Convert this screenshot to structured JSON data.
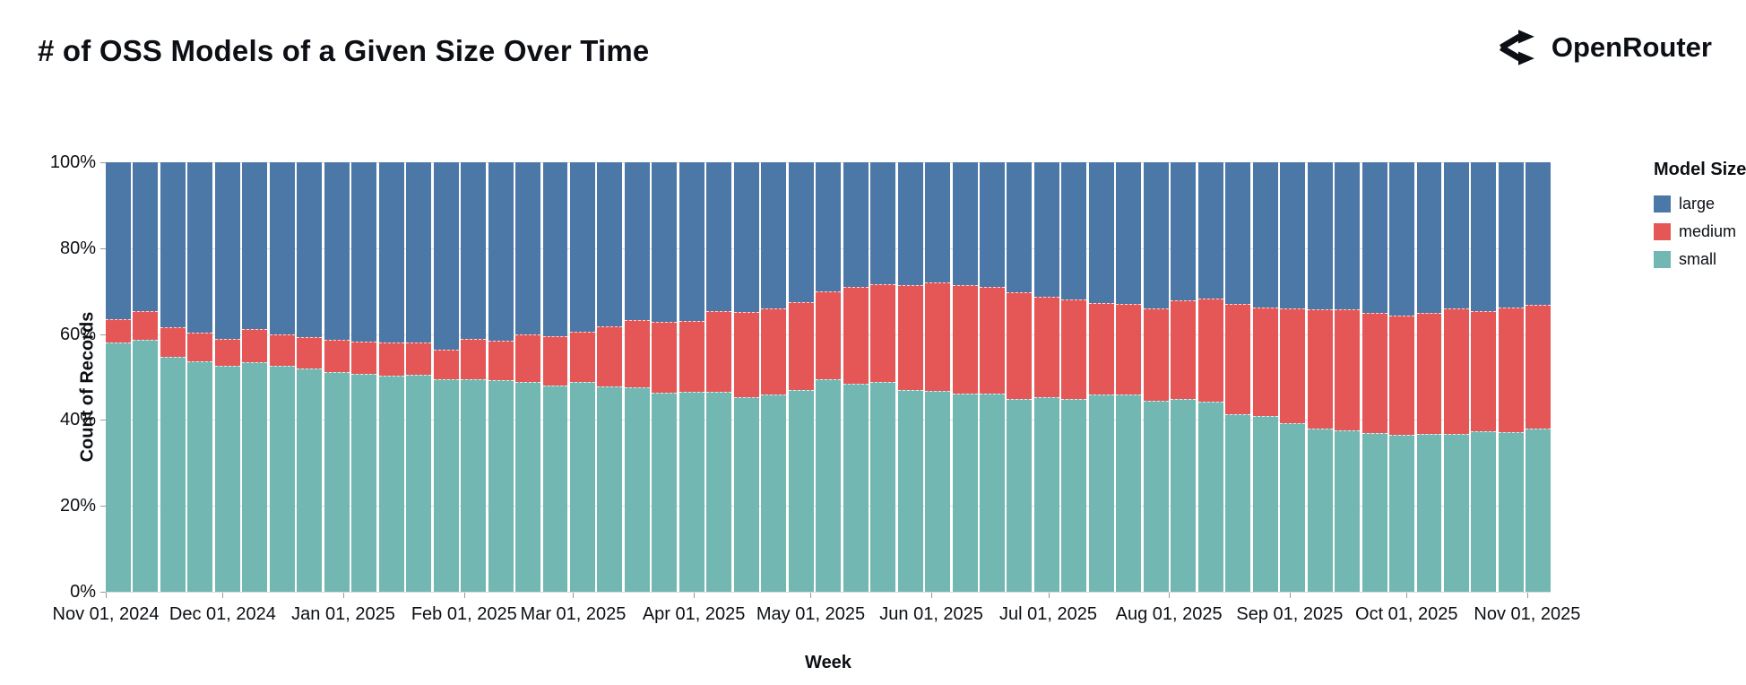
{
  "header": {
    "title": "# of OSS Models of a Given Size Over Time",
    "logo_text": "OpenRouter",
    "logo_icon": "openrouter-arrows-icon"
  },
  "legend": {
    "title": "Model Size",
    "items": [
      {
        "label": "large",
        "color": "#4c78a8"
      },
      {
        "label": "medium",
        "color": "#e45756"
      },
      {
        "label": "small",
        "color": "#72b7b2"
      }
    ]
  },
  "chart_data": {
    "type": "bar",
    "subtype": "stacked-100-percent-weekly",
    "title": "# of OSS Models of a Given Size Over Time",
    "xlabel": "Week",
    "ylabel": "Count of Records",
    "ylim": [
      0,
      100
    ],
    "y_tick_labels": [
      "0%",
      "20%",
      "40%",
      "60%",
      "80%",
      "100%"
    ],
    "y_tick_values": [
      0,
      20,
      40,
      60,
      80,
      100
    ],
    "grid": true,
    "legend_position": "right",
    "categories": [
      "Nov 01, 2024",
      "Nov 08, 2024",
      "Nov 15, 2024",
      "Nov 22, 2024",
      "Nov 29, 2024",
      "Dec 06, 2024",
      "Dec 13, 2024",
      "Dec 20, 2024",
      "Dec 27, 2024",
      "Jan 03, 2025",
      "Jan 10, 2025",
      "Jan 17, 2025",
      "Jan 24, 2025",
      "Jan 31, 2025",
      "Feb 07, 2025",
      "Feb 14, 2025",
      "Feb 21, 2025",
      "Feb 28, 2025",
      "Mar 07, 2025",
      "Mar 14, 2025",
      "Mar 21, 2025",
      "Mar 28, 2025",
      "Apr 04, 2025",
      "Apr 11, 2025",
      "Apr 18, 2025",
      "Apr 25, 2025",
      "May 02, 2025",
      "May 09, 2025",
      "May 16, 2025",
      "May 23, 2025",
      "May 30, 2025",
      "Jun 06, 2025",
      "Jun 13, 2025",
      "Jun 20, 2025",
      "Jun 27, 2025",
      "Jul 04, 2025",
      "Jul 11, 2025",
      "Jul 18, 2025",
      "Jul 25, 2025",
      "Aug 01, 2025",
      "Aug 08, 2025",
      "Aug 15, 2025",
      "Aug 22, 2025",
      "Aug 29, 2025",
      "Sep 05, 2025",
      "Sep 12, 2025",
      "Sep 19, 2025",
      "Sep 26, 2025",
      "Oct 03, 2025",
      "Oct 10, 2025",
      "Oct 17, 2025",
      "Oct 24, 2025",
      "Oct 31, 2025"
    ],
    "series": [
      {
        "name": "small",
        "color": "#72b7b2",
        "unit": "percent",
        "values": [
          58.0,
          58.7,
          54.7,
          53.6,
          52.6,
          53.4,
          52.6,
          51.9,
          51.2,
          50.8,
          50.4,
          50.6,
          49.4,
          49.4,
          49.2,
          48.8,
          48.1,
          48.8,
          47.9,
          47.6,
          46.4,
          46.6,
          46.5,
          45.2,
          45.9,
          47.0,
          49.5,
          48.5,
          48.9,
          47.0,
          46.7,
          46.1,
          46.1,
          44.9,
          45.2,
          44.9,
          45.9,
          46.0,
          44.5,
          44.9,
          44.2,
          41.4,
          40.9,
          39.3,
          37.9,
          37.5,
          37.0,
          36.5,
          36.8,
          36.7,
          37.3,
          37.1,
          37.9
        ]
      },
      {
        "name": "medium",
        "color": "#e45756",
        "unit": "percent",
        "values": [
          5.5,
          6.6,
          6.8,
          6.7,
          6.2,
          7.8,
          7.4,
          7.3,
          7.4,
          7.5,
          7.7,
          7.5,
          6.9,
          9.5,
          9.3,
          11.2,
          11.5,
          11.8,
          13.8,
          15.7,
          16.5,
          16.5,
          18.8,
          20.0,
          20.1,
          20.4,
          20.4,
          22.5,
          22.7,
          24.4,
          25.4,
          25.4,
          24.9,
          24.8,
          23.4,
          23.1,
          21.4,
          21.1,
          21.4,
          22.9,
          24.0,
          25.7,
          25.2,
          26.6,
          27.8,
          28.3,
          28.0,
          27.8,
          28.2,
          29.2,
          28.0,
          29.1,
          28.9
        ]
      },
      {
        "name": "large",
        "color": "#4c78a8",
        "unit": "percent",
        "values": [
          36.5,
          34.7,
          38.5,
          39.7,
          41.2,
          38.8,
          40.0,
          40.8,
          41.4,
          41.7,
          41.9,
          41.9,
          43.7,
          41.1,
          41.5,
          40.0,
          40.4,
          39.4,
          38.3,
          36.7,
          37.1,
          36.9,
          34.7,
          34.8,
          34.0,
          32.6,
          30.1,
          29.0,
          28.4,
          28.6,
          27.9,
          28.5,
          29.0,
          30.3,
          31.4,
          32.0,
          32.7,
          32.9,
          34.1,
          32.2,
          31.8,
          32.9,
          33.9,
          34.1,
          34.3,
          34.2,
          35.0,
          35.7,
          35.0,
          34.1,
          34.7,
          33.8,
          33.2
        ]
      }
    ],
    "x_tick_labels": [
      {
        "label": "Nov 01, 2024",
        "pct": 0.0
      },
      {
        "label": "Dec 01, 2024",
        "pct": 8.09
      },
      {
        "label": "Jan 01, 2025",
        "pct": 16.44
      },
      {
        "label": "Feb 01, 2025",
        "pct": 24.8
      },
      {
        "label": "Mar 01, 2025",
        "pct": 32.35
      },
      {
        "label": "Apr 01, 2025",
        "pct": 40.7
      },
      {
        "label": "May 01, 2025",
        "pct": 48.79
      },
      {
        "label": "Jun 01, 2025",
        "pct": 57.14
      },
      {
        "label": "Jul 01, 2025",
        "pct": 65.23
      },
      {
        "label": "Aug 01, 2025",
        "pct": 73.58
      },
      {
        "label": "Sep 01, 2025",
        "pct": 81.94
      },
      {
        "label": "Oct 01, 2025",
        "pct": 90.03
      },
      {
        "label": "Nov 01, 2025",
        "pct": 98.38
      }
    ]
  },
  "colors": {
    "text": "#0c0f14",
    "gridline": "#dddddd",
    "tick": "#9a9a9a",
    "background": "#ffffff"
  }
}
